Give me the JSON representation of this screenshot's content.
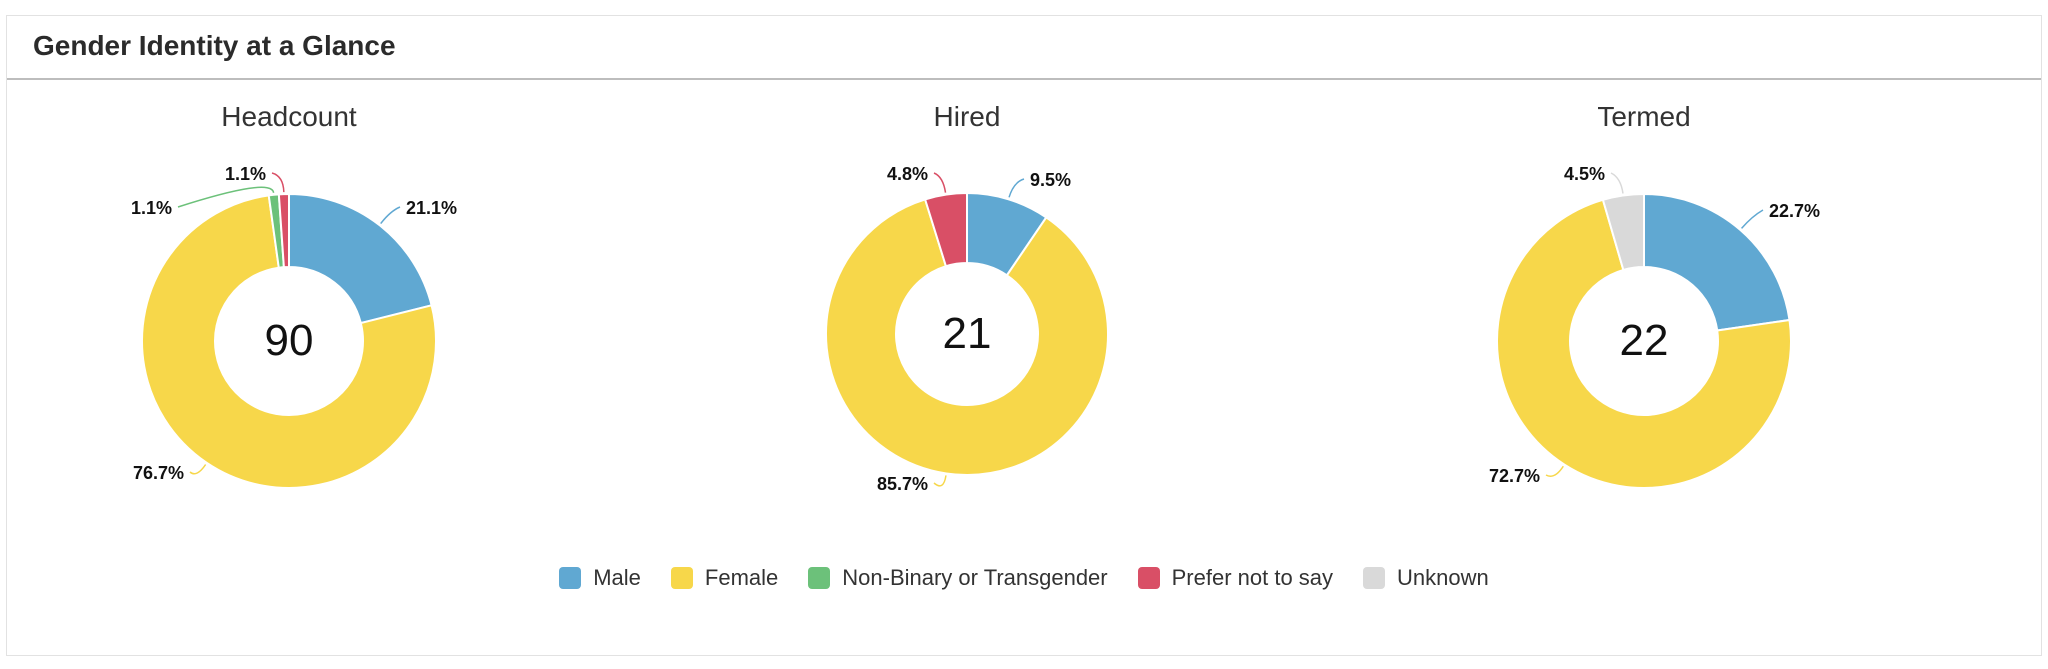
{
  "panel": {
    "title": "Gender Identity at a Glance"
  },
  "legend": [
    {
      "label": "Male",
      "color": "#60a8d2"
    },
    {
      "label": "Female",
      "color": "#f7d74a"
    },
    {
      "label": "Non-Binary or Transgender",
      "color": "#6cc17a"
    },
    {
      "label": "Prefer not to say",
      "color": "#d94f66"
    },
    {
      "label": "Unknown",
      "color": "#d9d9d9"
    }
  ],
  "chart_data": [
    {
      "type": "pie",
      "title": "Headcount",
      "center_value": "90",
      "categories": [
        "Male",
        "Female",
        "Non-Binary or Transgender",
        "Prefer not to say"
      ],
      "values": [
        21.1,
        76.7,
        1.1,
        1.1
      ],
      "labels": [
        "21.1%",
        "76.7%",
        "1.1%",
        "1.1%"
      ]
    },
    {
      "type": "pie",
      "title": "Hired",
      "center_value": "21",
      "categories": [
        "Male",
        "Female",
        "Prefer not to say"
      ],
      "values": [
        9.5,
        85.7,
        4.8
      ],
      "labels": [
        "9.5%",
        "85.7%",
        "4.8%"
      ]
    },
    {
      "type": "pie",
      "title": "Termed",
      "center_value": "22",
      "categories": [
        "Male",
        "Female",
        "Unknown"
      ],
      "values": [
        22.7,
        72.7,
        4.5
      ],
      "labels": [
        "22.7%",
        "72.7%",
        "4.5%"
      ]
    }
  ]
}
